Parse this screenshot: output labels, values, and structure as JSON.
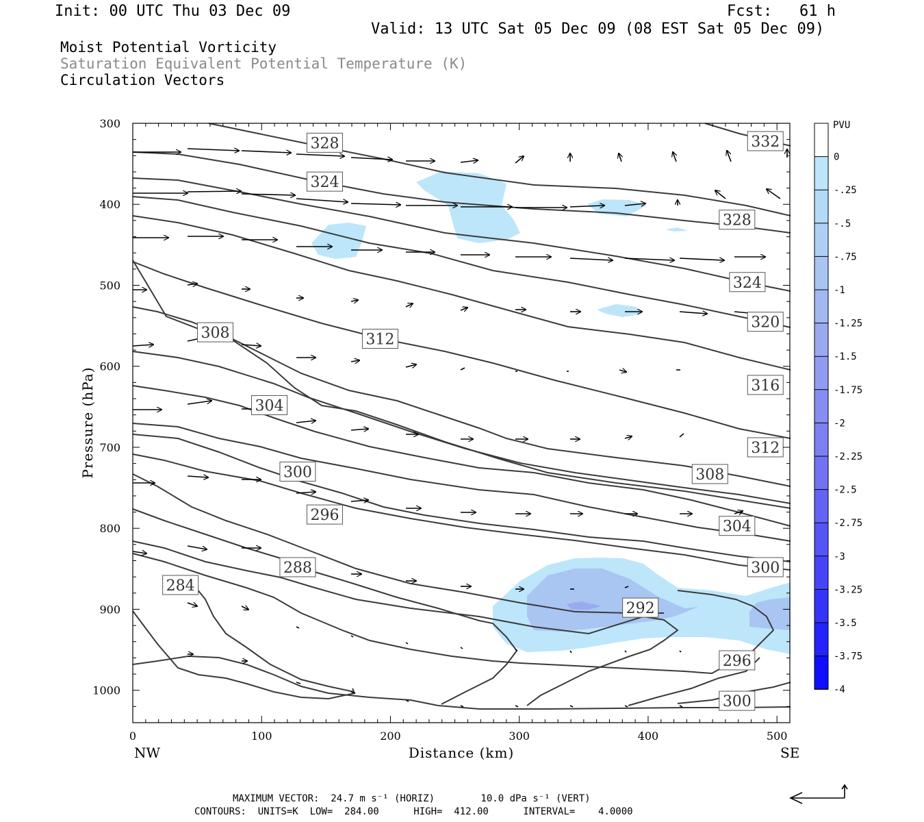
{
  "header": {
    "init": "Init: 00 UTC Thu 03 Dec 09",
    "fcst": "Fcst:   61 h",
    "valid": "Valid: 13 UTC Sat 05 Dec 09 (08 EST Sat 05 Dec 09)",
    "field1": "Moist Potential Vorticity",
    "field2": "Saturation Equivalent Potential Temperature (K)",
    "field3": "Circulation Vectors"
  },
  "footer": {
    "line1": "MAXIMUM VECTOR:  24.7 m s⁻¹ (HORIZ)        10.0 dPa s⁻¹ (VERT)",
    "line2": "CONTOURS:  UNITS=K  LOW=  284.00      HIGH=  412.00      INTERVAL=    4.0000"
  },
  "colors": {
    "contour": "#3a3a3a",
    "pv_fill_light": "#bde6fa",
    "pv_fill_mid": "#a9c5f2"
  },
  "chart_data": {
    "type": "cross-section",
    "xlabel": "Distance (km)",
    "ylabel": "Pressure (hPa)",
    "x_end_labels": [
      "NW",
      "SE"
    ],
    "xlim": [
      0,
      510
    ],
    "ylim": [
      300,
      1040
    ],
    "x_ticks": [
      0,
      100,
      200,
      300,
      400,
      500
    ],
    "y_ticks": [
      300,
      400,
      500,
      600,
      700,
      800,
      900,
      1000
    ],
    "colorbar": {
      "title": "PVU",
      "labels": [
        "0",
        "-.25",
        "-.5",
        "-.75",
        "-1",
        "-1.25",
        "-1.5",
        "-1.75",
        "-2",
        "-2.25",
        "-2.5",
        "-2.75",
        "-3",
        "-3.25",
        "-3.5",
        "-3.75",
        "-4"
      ],
      "colors": [
        "#ffffff",
        "#bde6fa",
        "#b3dbf8",
        "#aed0f6",
        "#a9c5f2",
        "#a2b8f1",
        "#9aaaf1",
        "#919cf1",
        "#878ef1",
        "#7d80f1",
        "#7272f3",
        "#6464f4",
        "#5555f5",
        "#4545f7",
        "#3535f9",
        "#2323fb",
        "#0f0ffd"
      ]
    },
    "contour_interval": 4,
    "contour_labels": [
      {
        "text": "328",
        "x": 149,
        "p": 324
      },
      {
        "text": "324",
        "x": 149,
        "p": 372
      },
      {
        "text": "332",
        "x": 491,
        "p": 322
      },
      {
        "text": "328",
        "x": 469,
        "p": 419
      },
      {
        "text": "324",
        "x": 477,
        "p": 496
      },
      {
        "text": "320",
        "x": 491,
        "p": 545
      },
      {
        "text": "308",
        "x": 64,
        "p": 558
      },
      {
        "text": "312",
        "x": 192,
        "p": 566
      },
      {
        "text": "316",
        "x": 491,
        "p": 623
      },
      {
        "text": "304",
        "x": 106,
        "p": 648
      },
      {
        "text": "312",
        "x": 491,
        "p": 700
      },
      {
        "text": "300",
        "x": 128,
        "p": 730
      },
      {
        "text": "308",
        "x": 448,
        "p": 733
      },
      {
        "text": "296",
        "x": 149,
        "p": 783
      },
      {
        "text": "304",
        "x": 469,
        "p": 797
      },
      {
        "text": "288",
        "x": 128,
        "p": 848
      },
      {
        "text": "300",
        "x": 491,
        "p": 848
      },
      {
        "text": "284",
        "x": 37,
        "p": 870
      },
      {
        "text": "292",
        "x": 394,
        "p": 898
      },
      {
        "text": "296",
        "x": 469,
        "p": 963
      },
      {
        "text": "300",
        "x": 469,
        "p": 1013
      }
    ]
  }
}
